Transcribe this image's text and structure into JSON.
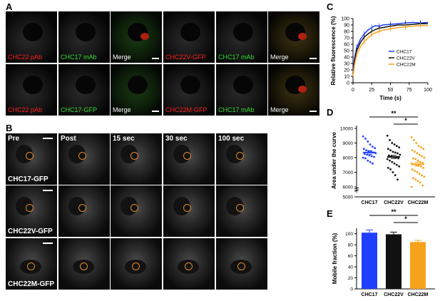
{
  "panels": {
    "A": "A",
    "B": "B",
    "C": "C",
    "D": "D",
    "E": "E"
  },
  "panel_a": {
    "row1": [
      "CHC22 pAb",
      "CHC17 mAb",
      "Merge",
      "CHC22V-GFP",
      "CHC17 mAb",
      "Merge"
    ],
    "row2": [
      "CHC22 pAb",
      "CHC17-GFP",
      "Merge",
      "CHC22M-GFP",
      "CHC17 mAb",
      "Merge"
    ]
  },
  "panel_b": {
    "times": [
      "Pre",
      "Post",
      "15 sec",
      "30 sec",
      "100 sec"
    ],
    "rows": [
      "CHC17-GFP",
      "CHC22V-GFP",
      "CHC22M-GFP"
    ]
  },
  "colors": {
    "chc17": "#1f3fff",
    "chc22v": "#111111",
    "chc22m": "#f7a21b",
    "roi": "#e08a2a"
  },
  "chart_data": [
    {
      "type": "line",
      "panel": "C",
      "xlabel": "Time (s)",
      "ylabel": "Relative fluorescence (%)",
      "xlim": [
        0,
        100
      ],
      "ylim": [
        0,
        100
      ],
      "xticks": [
        0,
        25,
        50,
        75,
        100
      ],
      "yticks": [
        0,
        10,
        20,
        30,
        40,
        50,
        60,
        70,
        80,
        90,
        100
      ],
      "legend": "center-right",
      "series": [
        {
          "name": "CHC17",
          "x": [
            0,
            2,
            5,
            10,
            15,
            20,
            25,
            30,
            35,
            40,
            50,
            60,
            70,
            80,
            90,
            100
          ],
          "y": [
            15,
            38,
            55,
            68,
            76,
            82,
            86,
            89,
            88,
            90,
            91,
            92,
            93,
            94,
            93,
            94
          ]
        },
        {
          "name": "CHC22V",
          "x": [
            0,
            2,
            5,
            10,
            15,
            20,
            25,
            30,
            35,
            40,
            50,
            60,
            70,
            80,
            90,
            100
          ],
          "y": [
            12,
            33,
            50,
            63,
            71,
            76,
            80,
            83,
            85,
            86,
            88,
            90,
            90,
            91,
            92,
            92
          ]
        },
        {
          "name": "CHC22M",
          "x": [
            0,
            2,
            5,
            10,
            15,
            20,
            25,
            30,
            35,
            40,
            50,
            60,
            70,
            80,
            90,
            100
          ],
          "y": [
            10,
            28,
            44,
            56,
            64,
            70,
            75,
            78,
            80,
            82,
            84,
            86,
            87,
            88,
            89,
            89
          ]
        }
      ]
    },
    {
      "type": "scatter",
      "panel": "D",
      "ylabel": "Area under the curve",
      "categories": [
        "CHC17",
        "CHC22V",
        "CHC22M"
      ],
      "yticks": [
        5000,
        6000,
        7000,
        8000,
        9000,
        10000
      ],
      "ylim": [
        5000,
        10000
      ],
      "axis_break": true,
      "means": [
        8350,
        8050,
        7550
      ],
      "sem": [
        120,
        110,
        130
      ],
      "points": [
        [
          9450,
          9300,
          9100,
          8900,
          8750,
          8650,
          8600,
          8500,
          8450,
          8400,
          8350,
          8300,
          8250,
          8200,
          8150,
          8100,
          8050,
          8000,
          7950,
          7800,
          7700,
          7600
        ],
        [
          9500,
          9200,
          9000,
          8900,
          8800,
          8700,
          8600,
          8500,
          8400,
          8350,
          8300,
          8200,
          8150,
          8100,
          8050,
          8000,
          7950,
          7900,
          7800,
          7700,
          7600,
          7500,
          7400,
          7300,
          7200,
          7000,
          6800,
          6500
        ],
        [
          9400,
          9200,
          9000,
          8800,
          8700,
          8600,
          8500,
          8400,
          8300,
          8200,
          8100,
          8000,
          7950,
          7900,
          7800,
          7700,
          7650,
          7600,
          7550,
          7500,
          7450,
          7400,
          7300,
          7200,
          7100,
          7000,
          6900,
          6800,
          6700,
          6600,
          6500,
          6400,
          6300,
          6100,
          6000
        ]
      ],
      "significance": [
        {
          "from": "CHC17",
          "to": "CHC22M",
          "label": "**"
        },
        {
          "from": "CHC22V",
          "to": "CHC22M",
          "label": "*"
        }
      ]
    },
    {
      "type": "bar",
      "panel": "E",
      "ylabel": "Mobile fraction (%)",
      "categories": [
        "CHC17",
        "CHC22V",
        "CHC22M"
      ],
      "values": [
        102,
        99,
        85
      ],
      "errors": [
        5,
        4,
        3
      ],
      "yticks": [
        0,
        20,
        40,
        60,
        80,
        100
      ],
      "ylim": [
        0,
        110
      ],
      "significance": [
        {
          "from": "CHC17",
          "to": "CHC22M",
          "label": "**"
        },
        {
          "from": "CHC22V",
          "to": "CHC22M",
          "label": "*"
        }
      ]
    }
  ]
}
